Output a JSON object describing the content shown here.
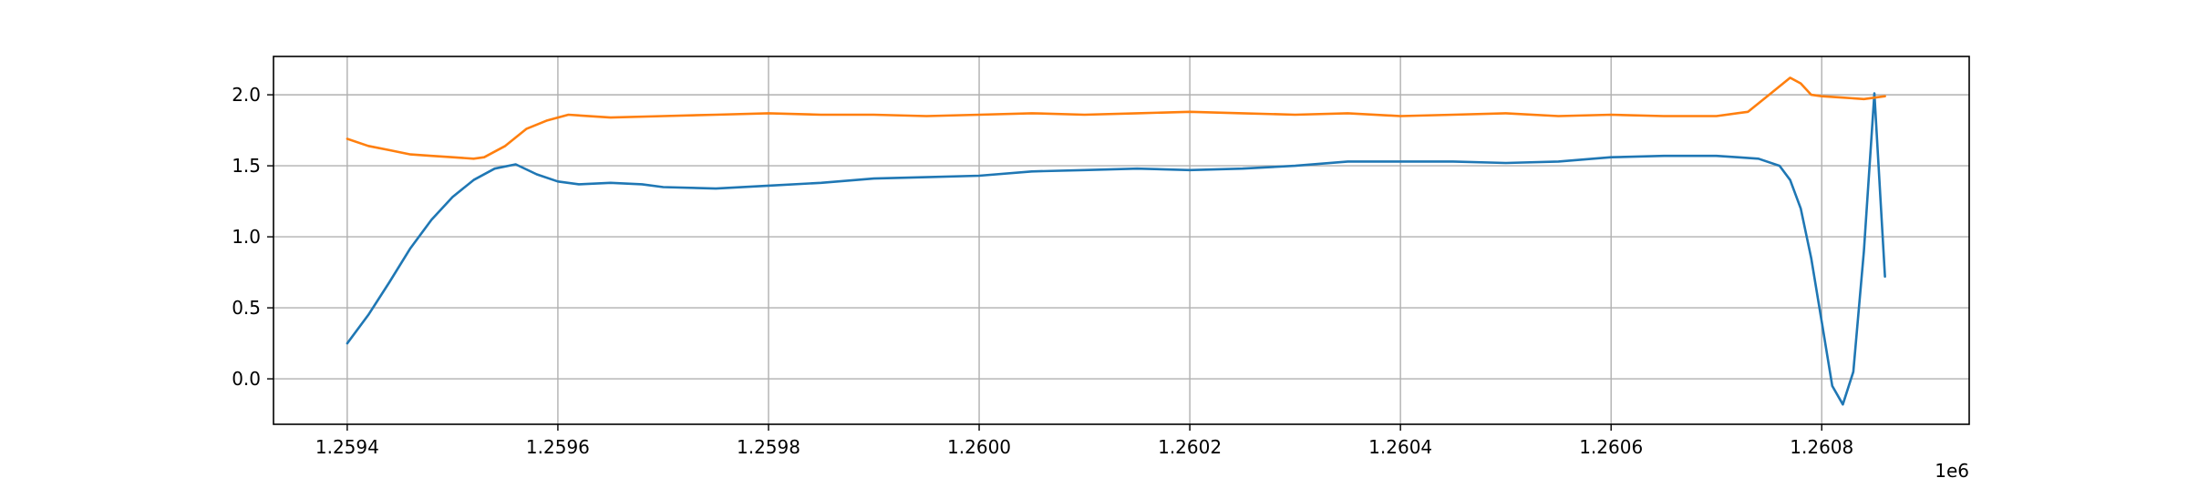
{
  "chart_data": {
    "type": "line",
    "title": "",
    "xlabel": "",
    "ylabel": "",
    "x_offset_label": "1e6",
    "xlim": [
      1.25933,
      1.26094
    ],
    "ylim": [
      -0.32,
      2.27
    ],
    "grid": true,
    "x_ticks": [
      1.2594,
      1.2596,
      1.2598,
      1.26,
      1.2602,
      1.2604,
      1.2606,
      1.2608
    ],
    "x_tick_labels": [
      "1.2594",
      "1.2596",
      "1.2598",
      "1.2600",
      "1.2602",
      "1.2604",
      "1.2606",
      "1.2608"
    ],
    "y_ticks": [
      0.0,
      0.5,
      1.0,
      1.5,
      2.0
    ],
    "y_tick_labels": [
      "0.0",
      "0.5",
      "1.0",
      "1.5",
      "2.0"
    ],
    "series": [
      {
        "color": "#1f77b4",
        "x": [
          1.2594,
          1.25942,
          1.25944,
          1.25946,
          1.25948,
          1.2595,
          1.25952,
          1.25954,
          1.25956,
          1.25958,
          1.2596,
          1.25962,
          1.25965,
          1.25968,
          1.2597,
          1.25975,
          1.2598,
          1.25985,
          1.2599,
          1.25995,
          1.26,
          1.26005,
          1.2601,
          1.26015,
          1.2602,
          1.26025,
          1.2603,
          1.26035,
          1.2604,
          1.26045,
          1.2605,
          1.26055,
          1.2606,
          1.26065,
          1.2607,
          1.26072,
          1.26074,
          1.26076,
          1.26077,
          1.26078,
          1.26079,
          1.2608,
          1.26081,
          1.26082,
          1.26083,
          1.26084,
          1.26085,
          1.26086
        ],
        "y": [
          0.25,
          0.45,
          0.68,
          0.92,
          1.12,
          1.28,
          1.4,
          1.48,
          1.51,
          1.44,
          1.39,
          1.37,
          1.38,
          1.37,
          1.35,
          1.34,
          1.36,
          1.38,
          1.41,
          1.42,
          1.43,
          1.46,
          1.47,
          1.48,
          1.47,
          1.48,
          1.5,
          1.53,
          1.53,
          1.53,
          1.52,
          1.53,
          1.56,
          1.57,
          1.57,
          1.56,
          1.55,
          1.5,
          1.4,
          1.2,
          0.85,
          0.4,
          -0.05,
          -0.18,
          0.05,
          0.9,
          2.01,
          0.72
        ]
      },
      {
        "color": "#ff7f0e",
        "x": [
          1.2594,
          1.25942,
          1.25944,
          1.25946,
          1.25948,
          1.2595,
          1.25952,
          1.25953,
          1.25955,
          1.25957,
          1.25959,
          1.25961,
          1.25965,
          1.2597,
          1.25975,
          1.2598,
          1.25985,
          1.2599,
          1.25995,
          1.26,
          1.26005,
          1.2601,
          1.26015,
          1.2602,
          1.26025,
          1.2603,
          1.26035,
          1.2604,
          1.26045,
          1.2605,
          1.26055,
          1.2606,
          1.26065,
          1.2607,
          1.26073,
          1.26075,
          1.26077,
          1.26078,
          1.26079,
          1.2608,
          1.26082,
          1.26084,
          1.26086
        ],
        "y": [
          1.69,
          1.64,
          1.61,
          1.58,
          1.57,
          1.56,
          1.55,
          1.56,
          1.64,
          1.76,
          1.82,
          1.86,
          1.84,
          1.85,
          1.86,
          1.87,
          1.86,
          1.86,
          1.85,
          1.86,
          1.87,
          1.86,
          1.87,
          1.88,
          1.87,
          1.86,
          1.87,
          1.85,
          1.86,
          1.87,
          1.85,
          1.86,
          1.85,
          1.85,
          1.88,
          2.0,
          2.12,
          2.08,
          2.0,
          1.99,
          1.98,
          1.97,
          1.99
        ]
      }
    ]
  }
}
